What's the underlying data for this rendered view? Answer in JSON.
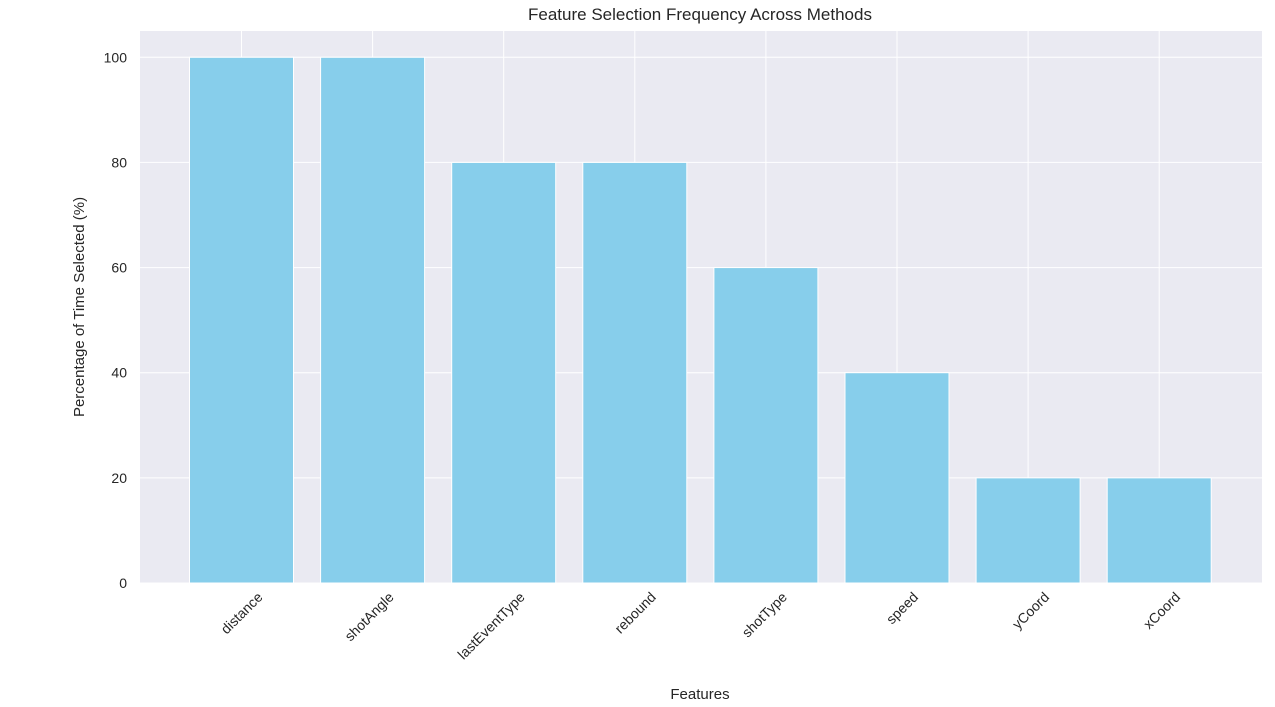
{
  "chart_data": {
    "type": "bar",
    "title": "Feature Selection Frequency Across Methods",
    "xlabel": "Features",
    "ylabel": "Percentage of Time Selected (%)",
    "categories": [
      "distance",
      "shotAngle",
      "lastEventType",
      "rebound",
      "shotType",
      "speed",
      "yCoord",
      "xCoord"
    ],
    "values": [
      100,
      100,
      80,
      80,
      60,
      40,
      20,
      20
    ],
    "yticks": [
      0,
      20,
      40,
      60,
      80,
      100
    ],
    "ylim": [
      0,
      105
    ],
    "grid": true,
    "bar_color": "#87CEEB",
    "background_color": "#EAEAF2",
    "grid_color": "#FFFFFF"
  }
}
